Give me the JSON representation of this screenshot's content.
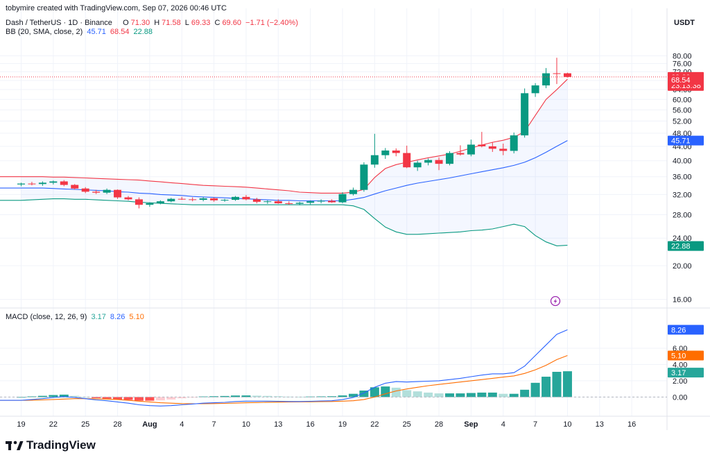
{
  "header": {
    "credit": "tobymire created with TradingView.com, Sep 07, 2026 00:46 UTC",
    "symbol": "Dash / TetherUS · 1D · Binance",
    "o_label": "O",
    "o_val": "71.30",
    "h_label": "H",
    "h_val": "71.58",
    "l_label": "L",
    "l_val": "69.33",
    "c_label": "C",
    "c_val": "69.60",
    "change": "−1.71 (−2.40%)",
    "bb_label": "BB (20, SMA, close, 2)",
    "bb_basis": "45.71",
    "bb_upper": "68.54",
    "bb_lower": "22.88",
    "macd_label": "MACD (close, 12, 26, 9)",
    "macd_hist": "3.17",
    "macd_line": "8.26",
    "macd_signal": "5.10",
    "currency": "USDT"
  },
  "logo": {
    "text": "TradingView"
  },
  "colors": {
    "up": "#089981",
    "down": "#f23645",
    "bb_basis": "#2962ff",
    "bb_upper": "#f23645",
    "bb_lower": "#089981",
    "bb_fill": "#2962ff",
    "macd": "#2962ff",
    "signal": "#ff6d00",
    "hist_up_strong": "#26a69a",
    "hist_up_weak": "#b2dfdb",
    "hist_down_strong": "#ff5252",
    "hist_down_weak": "#ffcdd2"
  },
  "chart_data": [
    {
      "type": "candlestick",
      "title": "Dash / TetherUS · 1D · Binance",
      "price_scale": "log",
      "ylim": [
        15.4,
        92
      ],
      "y_ticks": [
        "16.00",
        "20.00",
        "24.00",
        "28.00",
        "32.00",
        "36.00",
        "40.00",
        "44.00",
        "48.00",
        "52.00",
        "56.00",
        "60.00",
        "64.00",
        "68.00",
        "72.00",
        "76.00",
        "80.00"
      ],
      "x_ticks": [
        "19",
        "22",
        "25",
        "28",
        "Aug",
        "4",
        "7",
        "10",
        "13",
        "16",
        "19",
        "22",
        "25",
        "28",
        "Sep",
        "4",
        "7",
        "10",
        "13",
        "16"
      ],
      "current_price_label": "69.60",
      "countdown_label": "23:13:38",
      "bb_value_labels": {
        "upper": "68.54",
        "basis": "45.71",
        "lower": "22.88"
      },
      "candles": [
        [
          34.2,
          34.6,
          33.8,
          34.4
        ],
        [
          34.4,
          34.8,
          34.0,
          34.3
        ],
        [
          34.3,
          34.9,
          33.9,
          34.6
        ],
        [
          34.6,
          35.1,
          34.2,
          34.9
        ],
        [
          34.9,
          35.2,
          33.8,
          34.1
        ],
        [
          34.1,
          34.3,
          33.1,
          33.3
        ],
        [
          33.3,
          33.6,
          32.3,
          32.6
        ],
        [
          32.6,
          33.0,
          32.1,
          32.4
        ],
        [
          32.4,
          33.3,
          32.1,
          33.0
        ],
        [
          33.0,
          33.1,
          31.1,
          31.4
        ],
        [
          31.4,
          31.7,
          30.8,
          31.0
        ],
        [
          31.0,
          31.4,
          29.2,
          29.9
        ],
        [
          29.9,
          30.4,
          29.5,
          30.2
        ],
        [
          30.2,
          30.8,
          30.0,
          30.6
        ],
        [
          30.6,
          31.3,
          30.4,
          31.1
        ],
        [
          31.1,
          31.5,
          30.9,
          31.0
        ],
        [
          31.0,
          31.4,
          30.6,
          30.9
        ],
        [
          30.9,
          31.5,
          30.6,
          31.2
        ],
        [
          31.2,
          31.4,
          30.5,
          30.8
        ],
        [
          30.8,
          31.1,
          30.5,
          30.9
        ],
        [
          30.9,
          31.7,
          30.7,
          31.5
        ],
        [
          31.5,
          31.9,
          30.8,
          31.0
        ],
        [
          31.0,
          31.3,
          30.2,
          30.5
        ],
        [
          30.5,
          30.8,
          30.1,
          30.6
        ],
        [
          30.6,
          31.0,
          30.1,
          30.2
        ],
        [
          30.2,
          30.6,
          29.9,
          30.1
        ],
        [
          30.1,
          30.5,
          29.8,
          30.3
        ],
        [
          30.3,
          30.8,
          30.0,
          30.6
        ],
        [
          30.6,
          31.0,
          30.2,
          30.7
        ],
        [
          30.7,
          31.0,
          30.3,
          30.4
        ],
        [
          30.4,
          32.5,
          30.2,
          32.1
        ],
        [
          32.1,
          33.5,
          31.8,
          33.0
        ],
        [
          33.0,
          39.6,
          32.6,
          39.0
        ],
        [
          39.0,
          47.8,
          38.2,
          41.5
        ],
        [
          41.5,
          43.5,
          40.5,
          42.8
        ],
        [
          42.8,
          43.4,
          41.2,
          42.1
        ],
        [
          42.1,
          44.2,
          38.1,
          38.3
        ],
        [
          38.3,
          40.0,
          37.4,
          39.5
        ],
        [
          39.5,
          40.6,
          38.8,
          40.2
        ],
        [
          40.2,
          40.9,
          37.6,
          39.2
        ],
        [
          39.2,
          42.6,
          38.8,
          42.1
        ],
        [
          42.1,
          44.3,
          41.4,
          41.7
        ],
        [
          41.7,
          46.0,
          41.2,
          44.5
        ],
        [
          44.5,
          48.4,
          43.7,
          44.0
        ],
        [
          44.0,
          45.2,
          42.4,
          43.3
        ],
        [
          43.3,
          44.8,
          41.5,
          42.7
        ],
        [
          42.7,
          48.2,
          42.0,
          47.3
        ],
        [
          47.3,
          64.5,
          46.6,
          62.5
        ],
        [
          62.5,
          66.8,
          61.0,
          65.8
        ],
        [
          65.8,
          73.8,
          64.6,
          71.3
        ],
        [
          71.3,
          79.0,
          66.4,
          71.2
        ],
        [
          71.3,
          71.58,
          69.33,
          69.6
        ]
      ],
      "bb_upper": [
        36.0,
        36.0,
        36.0,
        35.9,
        35.9,
        35.8,
        35.7,
        35.6,
        35.5,
        35.4,
        35.3,
        35.2,
        35.0,
        34.8,
        34.6,
        34.4,
        34.2,
        34.0,
        33.9,
        33.8,
        33.7,
        33.6,
        33.4,
        33.2,
        33.0,
        32.8,
        32.5,
        32.4,
        32.3,
        32.3,
        32.3,
        32.5,
        33.1,
        35.8,
        38.0,
        39.0,
        39.6,
        40.2,
        40.8,
        41.3,
        41.8,
        42.6,
        43.5,
        44.4,
        45.2,
        45.8,
        46.7,
        48.5,
        54.0,
        60.0,
        64.0,
        68.54
      ],
      "bb_basis": [
        33.4,
        33.4,
        33.4,
        33.3,
        33.2,
        33.1,
        33.0,
        32.9,
        32.8,
        32.6,
        32.5,
        32.3,
        32.2,
        32.0,
        31.9,
        31.8,
        31.6,
        31.5,
        31.4,
        31.3,
        31.2,
        31.1,
        31.0,
        30.9,
        30.8,
        30.8,
        30.7,
        30.7,
        30.7,
        30.7,
        30.7,
        31.0,
        31.4,
        32.1,
        32.8,
        33.4,
        34.0,
        34.5,
        34.9,
        35.3,
        35.7,
        36.2,
        36.7,
        37.2,
        37.7,
        38.2,
        38.8,
        39.6,
        40.8,
        42.3,
        44.0,
        45.71
      ],
      "bb_lower": [
        30.8,
        30.9,
        31.0,
        31.1,
        31.1,
        31.0,
        31.0,
        30.9,
        30.8,
        30.7,
        30.6,
        30.4,
        30.3,
        30.2,
        30.1,
        30.0,
        29.9,
        29.9,
        29.9,
        29.9,
        29.9,
        29.9,
        29.9,
        29.9,
        29.9,
        29.9,
        29.9,
        29.9,
        29.9,
        29.9,
        29.9,
        29.7,
        29.0,
        27.3,
        25.8,
        25.0,
        24.6,
        24.6,
        24.7,
        24.8,
        24.9,
        25.0,
        25.2,
        25.3,
        25.5,
        25.9,
        26.3,
        25.9,
        24.4,
        23.4,
        22.8,
        22.88
      ]
    },
    {
      "type": "macd",
      "title": "MACD (close, 12, 26, 9)",
      "ylim": [
        -1.5,
        10
      ],
      "y_ticks": [
        "0.00",
        "2.00",
        "4.00",
        "6.00"
      ],
      "value_labels": {
        "macd": "8.26",
        "signal": "5.10",
        "histogram": "3.17"
      },
      "macd": [
        -0.4,
        -0.3,
        -0.2,
        -0.05,
        0.05,
        -0.05,
        -0.2,
        -0.35,
        -0.45,
        -0.6,
        -0.75,
        -0.95,
        -1.05,
        -1.1,
        -1.05,
        -0.95,
        -0.85,
        -0.75,
        -0.7,
        -0.65,
        -0.55,
        -0.5,
        -0.5,
        -0.5,
        -0.52,
        -0.55,
        -0.55,
        -0.52,
        -0.48,
        -0.45,
        -0.3,
        -0.05,
        0.5,
        1.2,
        1.7,
        1.9,
        1.85,
        1.9,
        1.95,
        2.0,
        2.15,
        2.3,
        2.5,
        2.7,
        2.85,
        2.85,
        3.0,
        3.8,
        5.1,
        6.4,
        7.7,
        8.26
      ],
      "signal": [
        -0.4,
        -0.38,
        -0.35,
        -0.3,
        -0.25,
        -0.2,
        -0.2,
        -0.22,
        -0.25,
        -0.3,
        -0.4,
        -0.5,
        -0.6,
        -0.7,
        -0.75,
        -0.8,
        -0.82,
        -0.82,
        -0.8,
        -0.78,
        -0.74,
        -0.7,
        -0.67,
        -0.64,
        -0.62,
        -0.6,
        -0.59,
        -0.58,
        -0.56,
        -0.55,
        -0.5,
        -0.45,
        -0.3,
        0.0,
        0.4,
        0.75,
        1.0,
        1.2,
        1.4,
        1.55,
        1.7,
        1.85,
        2.0,
        2.15,
        2.3,
        2.45,
        2.6,
        2.9,
        3.35,
        3.9,
        4.6,
        5.1
      ],
      "histogram": [
        0.0,
        0.08,
        0.15,
        0.25,
        0.3,
        0.15,
        0.0,
        -0.13,
        -0.2,
        -0.3,
        -0.35,
        -0.45,
        -0.45,
        -0.4,
        -0.3,
        -0.15,
        -0.03,
        0.07,
        0.1,
        0.13,
        0.19,
        0.2,
        0.17,
        0.14,
        0.1,
        0.05,
        0.04,
        0.06,
        0.08,
        0.1,
        0.2,
        0.4,
        0.8,
        1.2,
        1.3,
        1.15,
        0.85,
        0.7,
        0.55,
        0.45,
        0.45,
        0.45,
        0.5,
        0.55,
        0.55,
        0.4,
        0.4,
        0.9,
        1.75,
        2.5,
        3.1,
        3.17
      ]
    }
  ]
}
